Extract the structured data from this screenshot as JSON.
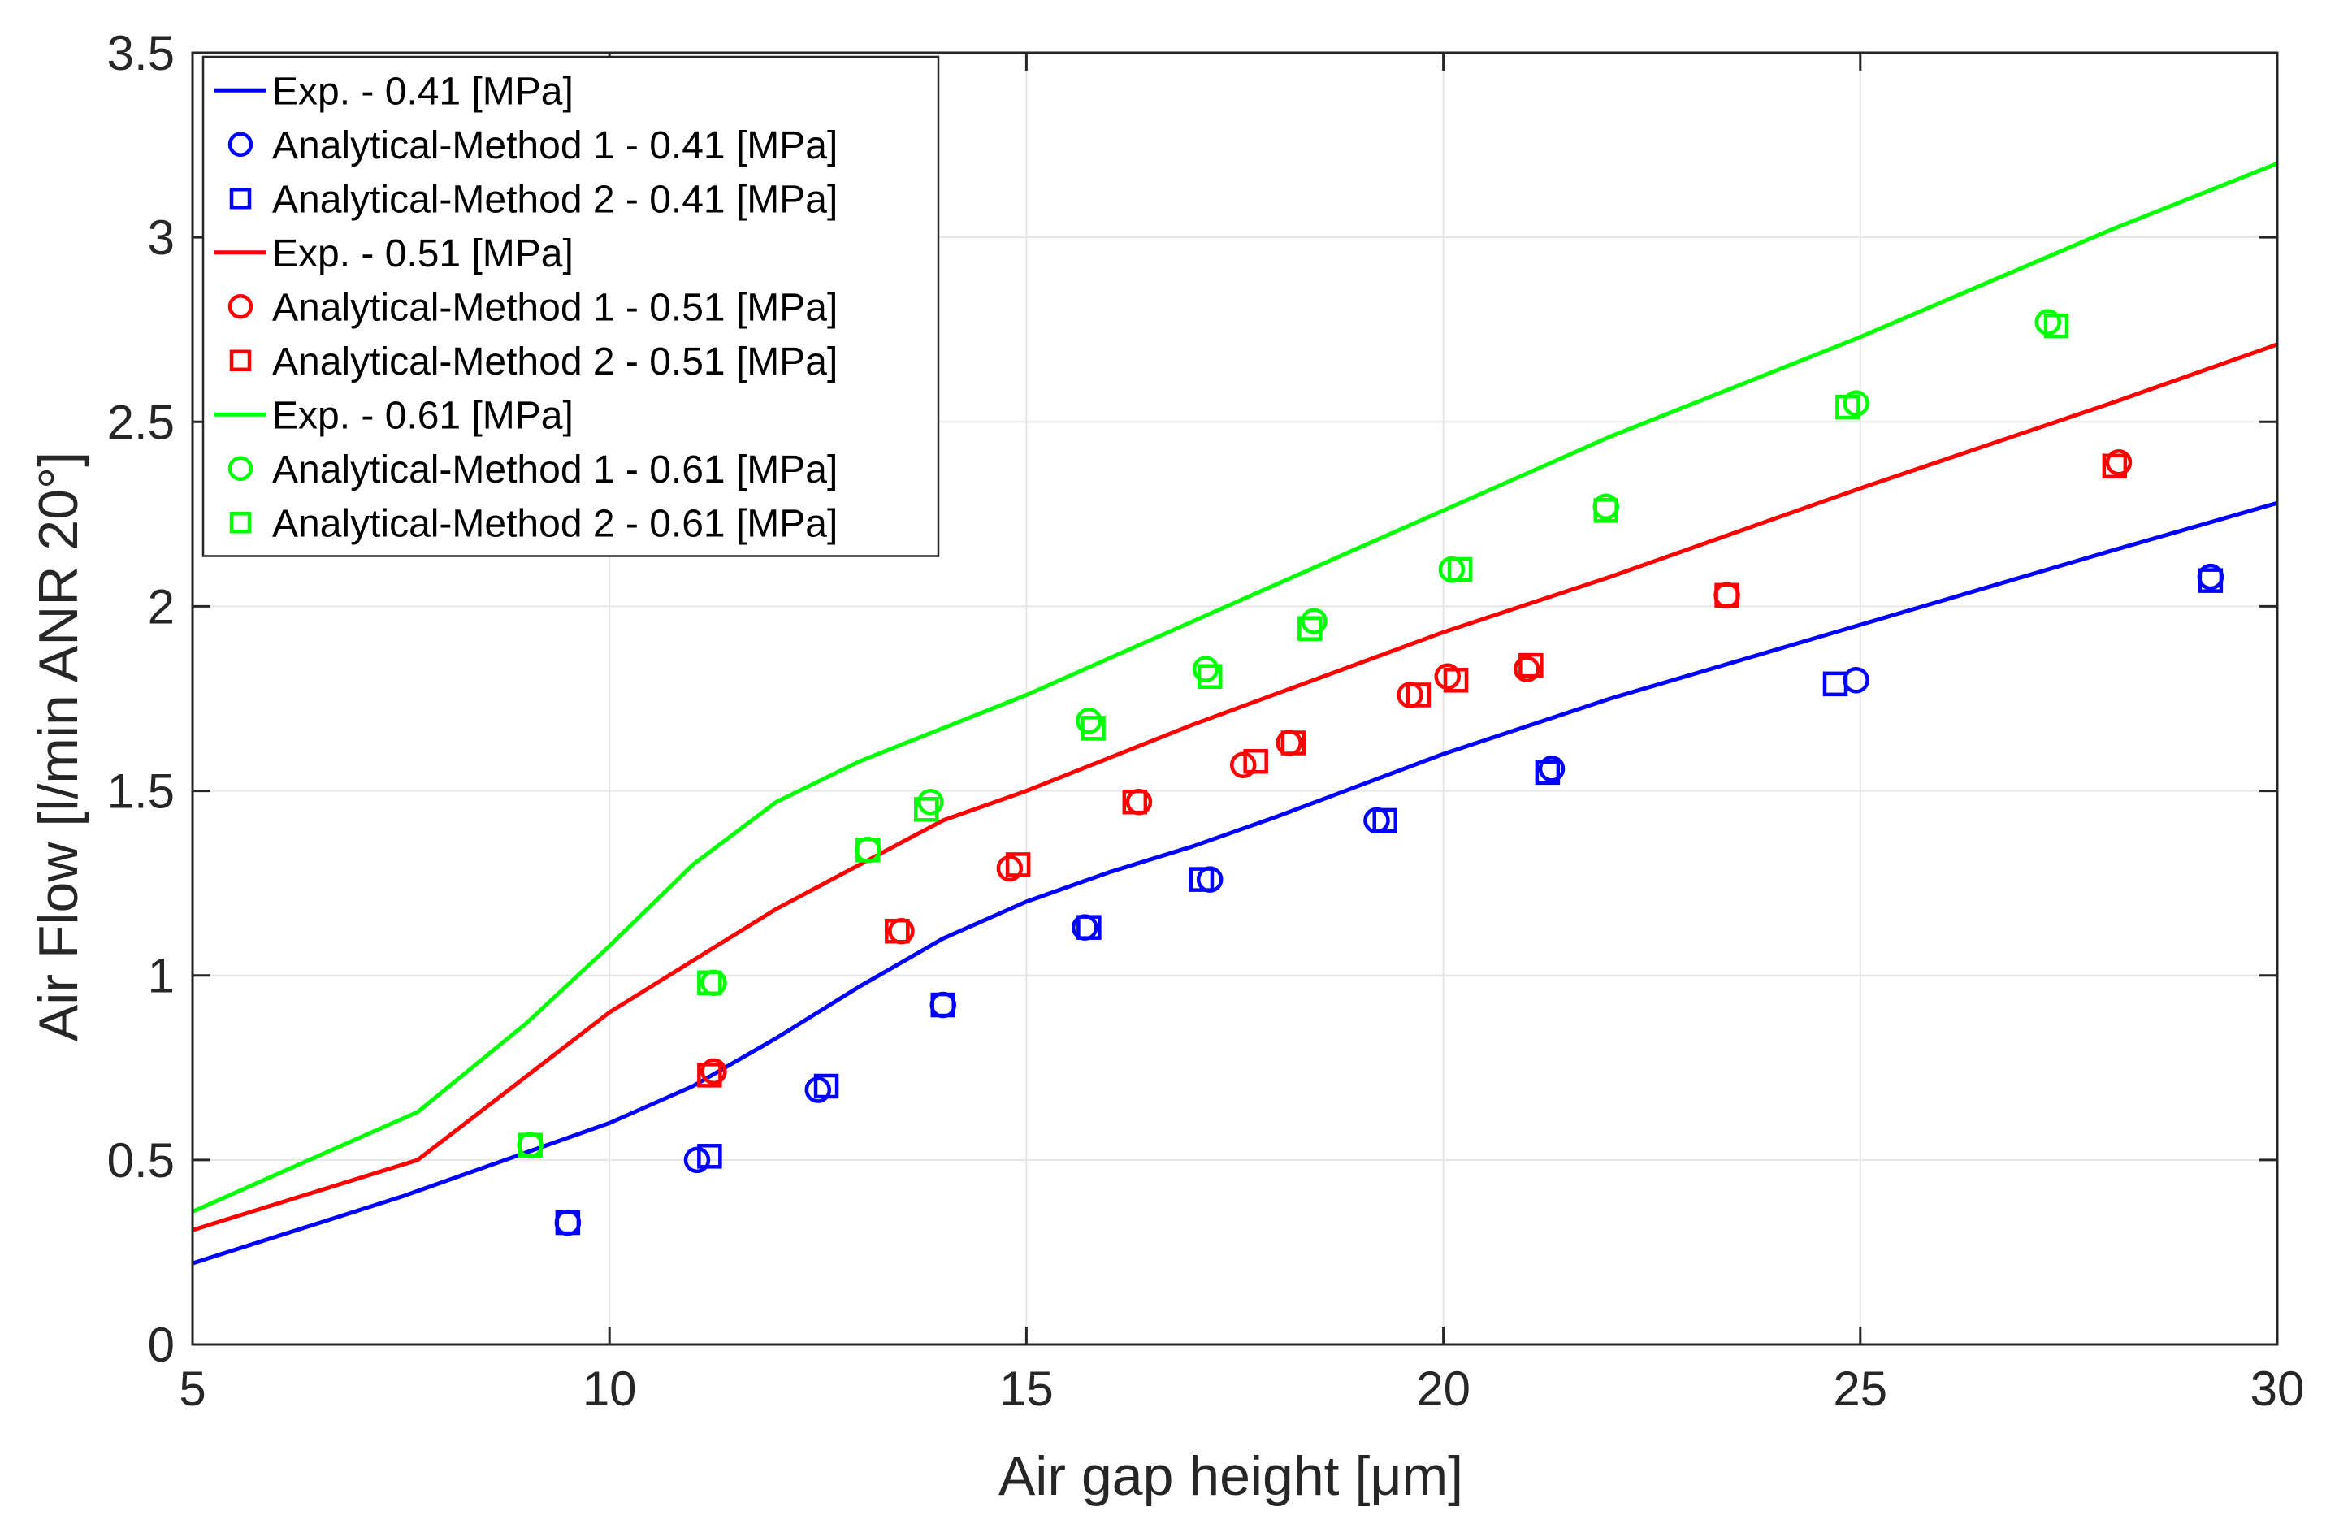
{
  "chart_data": {
    "type": "line",
    "title": "",
    "xlabel": "Air gap height [μm]",
    "ylabel": "Air Flow [l/min ANR 20°]",
    "xlim": [
      5,
      30
    ],
    "ylim": [
      0,
      3.5
    ],
    "xticks": [
      5,
      10,
      15,
      20,
      25,
      30
    ],
    "yticks": [
      0,
      0.5,
      1,
      1.5,
      2,
      2.5,
      3,
      3.5
    ],
    "xtick_labels": [
      "5",
      "10",
      "15",
      "20",
      "25",
      "30"
    ],
    "ytick_labels": [
      "0",
      "0.5",
      "1",
      "1.5",
      "2",
      "2.5",
      "3",
      "3.5"
    ],
    "grid": true,
    "legend_position": "top-left",
    "series": [
      {
        "name": "Exp. - 0.41 [MPa]",
        "kind": "line",
        "color": "#0000ff",
        "x": [
          5,
          7.5,
          10,
          11,
          12,
          13,
          14,
          15,
          16,
          17,
          18,
          20,
          22,
          25,
          28,
          30
        ],
        "y": [
          0.22,
          0.4,
          0.6,
          0.7,
          0.83,
          0.97,
          1.1,
          1.2,
          1.28,
          1.35,
          1.43,
          1.6,
          1.75,
          1.95,
          2.15,
          2.28
        ]
      },
      {
        "name": "Analytical-Method 1 - 0.41 [MPa]",
        "kind": "marker",
        "marker": "circle",
        "color": "#0000ff",
        "x": [
          9.5,
          11.05,
          12.5,
          14.0,
          15.7,
          17.2,
          19.2,
          21.3,
          24.95,
          29.2
        ],
        "y": [
          0.33,
          0.5,
          0.69,
          0.92,
          1.13,
          1.26,
          1.42,
          1.56,
          1.8,
          2.08
        ]
      },
      {
        "name": "Analytical-Method 2 - 0.41 [MPa]",
        "kind": "marker",
        "marker": "square",
        "color": "#0000ff",
        "x": [
          9.5,
          11.2,
          12.6,
          14.0,
          15.75,
          17.1,
          19.3,
          21.25,
          24.7,
          29.2
        ],
        "y": [
          0.33,
          0.51,
          0.7,
          0.92,
          1.13,
          1.26,
          1.42,
          1.55,
          1.79,
          2.07
        ]
      },
      {
        "name": "Exp. - 0.51 [MPa]",
        "kind": "line",
        "color": "#ff0000",
        "x": [
          5,
          7.7,
          10,
          12,
          13,
          14,
          15,
          17,
          20,
          22,
          25,
          28,
          30
        ],
        "y": [
          0.31,
          0.5,
          0.9,
          1.18,
          1.3,
          1.42,
          1.5,
          1.68,
          1.93,
          2.08,
          2.32,
          2.55,
          2.71
        ]
      },
      {
        "name": "Analytical-Method 1 - 0.51 [MPa]",
        "kind": "marker",
        "marker": "circle",
        "color": "#ff0000",
        "x": [
          11.25,
          13.5,
          14.8,
          16.35,
          17.6,
          18.15,
          19.6,
          20.05,
          21.0,
          23.4,
          28.1
        ],
        "y": [
          0.74,
          1.12,
          1.29,
          1.47,
          1.57,
          1.63,
          1.76,
          1.81,
          1.83,
          2.03,
          2.39
        ]
      },
      {
        "name": "Analytical-Method 2 - 0.51 [MPa]",
        "kind": "marker",
        "marker": "square",
        "color": "#ff0000",
        "x": [
          11.2,
          13.45,
          14.9,
          16.3,
          17.75,
          18.2,
          19.7,
          20.15,
          21.05,
          23.4,
          28.05
        ],
        "y": [
          0.73,
          1.12,
          1.3,
          1.47,
          1.58,
          1.63,
          1.76,
          1.8,
          1.84,
          2.03,
          2.38
        ]
      },
      {
        "name": "Exp. - 0.61 [MPa]",
        "kind": "line",
        "color": "#00ff00",
        "x": [
          5,
          7.7,
          9,
          10,
          11,
          12,
          13,
          14,
          15,
          16,
          17,
          18,
          20,
          22,
          25,
          28,
          30
        ],
        "y": [
          0.36,
          0.63,
          0.87,
          1.08,
          1.3,
          1.47,
          1.58,
          1.67,
          1.76,
          1.86,
          1.96,
          2.06,
          2.26,
          2.46,
          2.73,
          3.02,
          3.2
        ]
      },
      {
        "name": "Analytical-Method 1 - 0.61 [MPa]",
        "kind": "marker",
        "marker": "circle",
        "color": "#00ff00",
        "x": [
          9.05,
          11.25,
          13.1,
          13.85,
          15.75,
          17.15,
          18.45,
          20.1,
          21.95,
          24.95,
          27.25
        ],
        "y": [
          0.54,
          0.98,
          1.34,
          1.47,
          1.69,
          1.83,
          1.96,
          2.1,
          2.27,
          2.55,
          2.77
        ]
      },
      {
        "name": "Analytical-Method 2 - 0.61 [MPa]",
        "kind": "marker",
        "marker": "square",
        "color": "#00ff00",
        "x": [
          9.05,
          11.2,
          13.1,
          13.8,
          15.8,
          17.2,
          18.4,
          20.2,
          21.95,
          24.85,
          27.35
        ],
        "y": [
          0.54,
          0.98,
          1.34,
          1.45,
          1.67,
          1.81,
          1.94,
          2.1,
          2.26,
          2.54,
          2.76
        ]
      }
    ]
  }
}
